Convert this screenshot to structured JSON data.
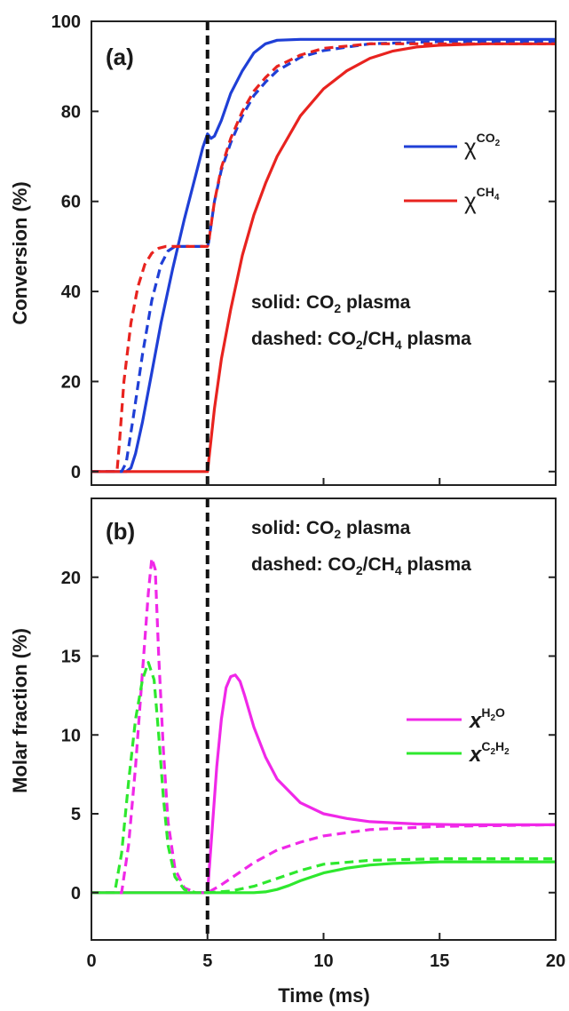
{
  "chart_data": [
    {
      "type": "line",
      "panel_label": "(a)",
      "xlabel": "",
      "ylabel": "Conversion (%)",
      "xlim": [
        0,
        20
      ],
      "ylim": [
        -3,
        100
      ],
      "x_ticks": [
        0,
        5,
        10,
        15,
        20
      ],
      "y_ticks": [
        0,
        20,
        40,
        60,
        80,
        100
      ],
      "vline_x": 5,
      "annotation": {
        "line1": {
          "prefix": "solid: CO",
          "sub": "2",
          "suffix": " plasma"
        },
        "line2": {
          "prefix": "dashed: CO",
          "sub1": "2",
          "mid": "/CH",
          "sub2": "4",
          "suffix": " plasma"
        }
      },
      "legend": [
        {
          "symbol": "χ",
          "sup_main": "CO",
          "sup_sub": "2",
          "color": "#1f3fd6"
        },
        {
          "symbol": "χ",
          "sup_main": "CH",
          "sup_sub": "4",
          "color": "#e8231f"
        }
      ],
      "series": [
        {
          "id": "co2-solid",
          "color": "#1f3fd6",
          "dashed": false,
          "x": [
            0,
            1.5,
            1.7,
            1.9,
            2.2,
            2.6,
            3.0,
            3.5,
            4.0,
            4.5,
            4.8,
            5.0,
            5.15,
            5.3,
            5.6,
            6.0,
            6.5,
            7.0,
            7.5,
            8.0,
            9.0,
            10.0,
            12.0,
            15.0,
            20.0
          ],
          "y": [
            0,
            0,
            0.8,
            4,
            11,
            22,
            33,
            45,
            56,
            66,
            72,
            75,
            74,
            74.5,
            78,
            84,
            89,
            93,
            95,
            95.8,
            96,
            96,
            96,
            96,
            96
          ]
        },
        {
          "id": "ch4-solid",
          "color": "#e8231f",
          "dashed": false,
          "x": [
            0,
            5.0,
            5.3,
            5.6,
            6.0,
            6.5,
            7.0,
            7.5,
            8.0,
            9.0,
            10.0,
            11.0,
            12.0,
            13.0,
            14.0,
            15.0,
            17.0,
            20.0
          ],
          "y": [
            0,
            0,
            14,
            25,
            36,
            48,
            57,
            64,
            70,
            79,
            85,
            89,
            91.8,
            93.4,
            94.3,
            94.7,
            95,
            95
          ]
        },
        {
          "id": "co2-dashed",
          "color": "#1f3fd6",
          "dashed": true,
          "x": [
            0,
            1.3,
            1.5,
            1.8,
            2.2,
            2.6,
            3.0,
            3.3,
            3.6,
            4.0,
            4.5,
            5.0,
            5.05,
            5.3,
            5.6,
            6.0,
            6.5,
            7.0,
            7.5,
            8.0,
            9.0,
            10.0,
            12.0,
            15.0,
            20.0
          ],
          "y": [
            0,
            0,
            2,
            12,
            26,
            38,
            46,
            49,
            50,
            50,
            50,
            50,
            51,
            60,
            67,
            73,
            79,
            83.5,
            86.5,
            89,
            92,
            93.5,
            95,
            95.5,
            95.5
          ]
        },
        {
          "id": "ch4-dashed",
          "color": "#e8231f",
          "dashed": true,
          "x": [
            0,
            1.1,
            1.2,
            1.4,
            1.7,
            2.0,
            2.3,
            2.6,
            2.9,
            3.2,
            3.6,
            4.0,
            4.5,
            5.0,
            5.05,
            5.3,
            5.6,
            6.0,
            6.5,
            7.0,
            7.5,
            8.0,
            9.0,
            10.0,
            12.0,
            15.0,
            20.0
          ],
          "y": [
            0,
            0,
            6,
            20,
            33,
            41,
            46,
            48.5,
            49.6,
            50,
            50,
            50,
            50,
            50,
            51,
            60,
            67.5,
            74,
            80,
            84.5,
            87.5,
            90,
            92.5,
            94,
            95,
            95,
            95
          ]
        }
      ]
    },
    {
      "type": "line",
      "panel_label": "(b)",
      "xlabel": "Time (ms)",
      "ylabel": "Molar fraction (%)",
      "xlim": [
        0,
        20
      ],
      "ylim": [
        -3,
        25
      ],
      "x_ticks": [
        0,
        5,
        10,
        15,
        20
      ],
      "y_ticks": [
        0,
        5,
        10,
        15,
        20
      ],
      "vline_x": 5,
      "annotation": {
        "line1": {
          "prefix": "solid: CO",
          "sub": "2",
          "suffix": " plasma"
        },
        "line2": {
          "prefix": "dashed: CO",
          "sub1": "2",
          "mid": "/CH",
          "sub2": "4",
          "suffix": " plasma"
        }
      },
      "legend": [
        {
          "symbol": "x",
          "sup_main": "H",
          "sup_sub": "2",
          "sup_tail": "O",
          "color": "#f028e8"
        },
        {
          "symbol": "x",
          "sup_main": "C",
          "sup_sub": "2",
          "sup_tail": "H",
          "sup_sub2": "2",
          "color": "#2ee82e"
        }
      ],
      "series": [
        {
          "id": "h2o-solid",
          "color": "#f028e8",
          "dashed": false,
          "x": [
            0,
            4.5,
            4.8,
            5.0,
            5.2,
            5.4,
            5.6,
            5.8,
            6.0,
            6.2,
            6.4,
            6.6,
            7.0,
            7.5,
            8.0,
            9.0,
            10.0,
            11.0,
            12.0,
            14.0,
            16.0,
            20.0
          ],
          "y": [
            0,
            0,
            0,
            0,
            4,
            8,
            11,
            13,
            13.7,
            13.8,
            13.4,
            12.5,
            10.5,
            8.6,
            7.2,
            5.7,
            5.0,
            4.7,
            4.5,
            4.35,
            4.3,
            4.3
          ]
        },
        {
          "id": "c2h2-solid",
          "color": "#2ee82e",
          "dashed": false,
          "x": [
            0,
            5.0,
            7.0,
            7.5,
            8.0,
            8.5,
            9.0,
            9.5,
            10.0,
            11.0,
            12.0,
            13.0,
            14.0,
            15.0,
            17.0,
            20.0
          ],
          "y": [
            0,
            0,
            0,
            0.05,
            0.2,
            0.45,
            0.75,
            1.0,
            1.25,
            1.55,
            1.75,
            1.85,
            1.9,
            1.95,
            1.95,
            1.95
          ]
        },
        {
          "id": "h2o-dashed",
          "color": "#f028e8",
          "dashed": true,
          "x": [
            0,
            1.3,
            1.6,
            1.9,
            2.2,
            2.45,
            2.6,
            2.75,
            2.9,
            3.1,
            3.3,
            3.6,
            4.0,
            4.5,
            5.0,
            5.5,
            6.0,
            6.5,
            7.0,
            8.0,
            9.0,
            10.0,
            12.0,
            15.0,
            20.0
          ],
          "y": [
            0,
            0,
            3,
            8,
            14,
            19,
            21.2,
            20.5,
            15,
            9,
            4.5,
            1.5,
            0.3,
            0,
            0,
            0.4,
            0.9,
            1.4,
            1.9,
            2.7,
            3.2,
            3.6,
            4.0,
            4.2,
            4.3
          ]
        },
        {
          "id": "c2h2-dashed",
          "color": "#2ee82e",
          "dashed": true,
          "x": [
            0,
            1.0,
            1.3,
            1.6,
            1.9,
            2.2,
            2.45,
            2.7,
            2.9,
            3.1,
            3.3,
            3.6,
            4.0,
            4.5,
            5.0,
            6.0,
            7.0,
            8.0,
            9.0,
            10.0,
            12.0,
            15.0,
            20.0
          ],
          "y": [
            0,
            0,
            2.5,
            7,
            11,
            13.5,
            14.6,
            13.5,
            10,
            6,
            3,
            1,
            0.2,
            0,
            0,
            0.1,
            0.4,
            0.9,
            1.4,
            1.8,
            2.05,
            2.15,
            2.15
          ]
        }
      ]
    }
  ]
}
